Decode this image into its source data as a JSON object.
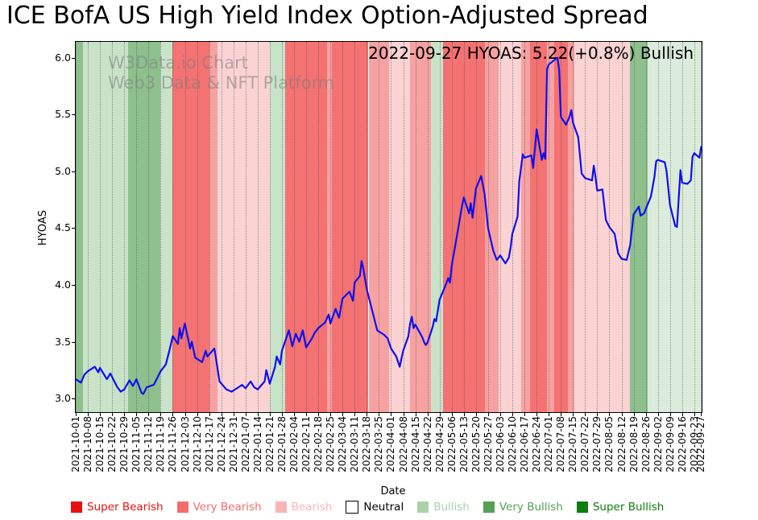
{
  "title": "ICE BofA US High Yield Index Option-Adjusted Spread",
  "watermark": {
    "line1": "W3Data.io Chart",
    "line2": "Web3 Data & NFT Platform"
  },
  "annotation": "2022-09-27 HYOAS: 5.22(+0.8%) Bullish",
  "legend": {
    "items": [
      {
        "label": "Super Bearish",
        "color": "#e81010"
      },
      {
        "label": "Very Bearish",
        "color": "#f56c6c"
      },
      {
        "label": "Bearish",
        "color": "#f8b4b4"
      },
      {
        "label": "Neutral",
        "color": "#ffffff",
        "text_color": "#000000",
        "border": true
      },
      {
        "label": "Bullish",
        "color": "#abd0ab"
      },
      {
        "label": "Very Bullish",
        "color": "#55a055"
      },
      {
        "label": "Super Bullish",
        "color": "#0e7d0e"
      }
    ]
  },
  "chart_data": {
    "type": "line",
    "title": "ICE BofA US High Yield Index Option-Adjusted Spread",
    "xlabel": "Date",
    "ylabel": "HYOAS",
    "ylim": [
      2.88,
      6.14
    ],
    "yticks": [
      3.0,
      3.5,
      4.0,
      4.5,
      5.0,
      5.5,
      6.0
    ],
    "grid": "weekly dotted vertical gridlines",
    "legend_position": "bottom",
    "line_color": "#0f0fee",
    "x_start": "2021-10-01",
    "x_end": "2022-09-27",
    "x_tick_labels": [
      "2021-10-01",
      "2021-10-08",
      "2021-10-15",
      "2021-10-22",
      "2021-10-29",
      "2021-11-05",
      "2021-11-12",
      "2021-11-19",
      "2021-11-26",
      "2021-12-03",
      "2021-12-10",
      "2021-12-17",
      "2021-12-24",
      "2021-12-31",
      "2022-01-07",
      "2022-01-14",
      "2022-01-21",
      "2022-01-28",
      "2022-02-04",
      "2022-02-11",
      "2022-02-18",
      "2022-02-25",
      "2022-03-04",
      "2022-03-11",
      "2022-03-18",
      "2022-03-25",
      "2022-04-01",
      "2022-04-08",
      "2022-04-15",
      "2022-04-22",
      "2022-04-29",
      "2022-05-06",
      "2022-05-13",
      "2022-05-20",
      "2022-05-27",
      "2022-06-03",
      "2022-06-10",
      "2022-06-17",
      "2022-06-24",
      "2022-07-01",
      "2022-07-08",
      "2022-07-15",
      "2022-07-22",
      "2022-07-29",
      "2022-08-05",
      "2022-08-12",
      "2022-08-19",
      "2022-08-26",
      "2022-09-02",
      "2022-09-09",
      "2022-09-16",
      "2022-09-23",
      "2022-09-27"
    ],
    "series_name": "HYOAS",
    "series": [
      [
        "2021-10-01",
        3.17
      ],
      [
        "2021-10-04",
        3.14
      ],
      [
        "2021-10-06",
        3.21
      ],
      [
        "2021-10-08",
        3.24
      ],
      [
        "2021-10-12",
        3.28
      ],
      [
        "2021-10-14",
        3.23
      ],
      [
        "2021-10-15",
        3.27
      ],
      [
        "2021-10-19",
        3.17
      ],
      [
        "2021-10-21",
        3.22
      ],
      [
        "2021-10-25",
        3.1
      ],
      [
        "2021-10-27",
        3.06
      ],
      [
        "2021-10-29",
        3.08
      ],
      [
        "2021-11-01",
        3.16
      ],
      [
        "2021-11-03",
        3.11
      ],
      [
        "2021-11-05",
        3.17
      ],
      [
        "2021-11-08",
        3.05
      ],
      [
        "2021-11-09",
        3.04
      ],
      [
        "2021-11-11",
        3.1
      ],
      [
        "2021-11-15",
        3.12
      ],
      [
        "2021-11-17",
        3.18
      ],
      [
        "2021-11-19",
        3.24
      ],
      [
        "2021-11-22",
        3.3
      ],
      [
        "2021-11-24",
        3.42
      ],
      [
        "2021-11-26",
        3.55
      ],
      [
        "2021-11-29",
        3.48
      ],
      [
        "2021-11-30",
        3.62
      ],
      [
        "2021-12-01",
        3.53
      ],
      [
        "2021-12-03",
        3.66
      ],
      [
        "2021-12-06",
        3.44
      ],
      [
        "2021-12-07",
        3.5
      ],
      [
        "2021-12-09",
        3.36
      ],
      [
        "2021-12-13",
        3.32
      ],
      [
        "2021-12-15",
        3.42
      ],
      [
        "2021-12-16",
        3.37
      ],
      [
        "2021-12-20",
        3.44
      ],
      [
        "2021-12-21",
        3.35
      ],
      [
        "2021-12-23",
        3.15
      ],
      [
        "2021-12-27",
        3.08
      ],
      [
        "2021-12-30",
        3.06
      ],
      [
        "2022-01-03",
        3.1
      ],
      [
        "2022-01-05",
        3.12
      ],
      [
        "2022-01-07",
        3.09
      ],
      [
        "2022-01-10",
        3.15
      ],
      [
        "2022-01-12",
        3.1
      ],
      [
        "2022-01-14",
        3.08
      ],
      [
        "2022-01-18",
        3.15
      ],
      [
        "2022-01-19",
        3.25
      ],
      [
        "2022-01-21",
        3.13
      ],
      [
        "2022-01-24",
        3.28
      ],
      [
        "2022-01-25",
        3.37
      ],
      [
        "2022-01-27",
        3.3
      ],
      [
        "2022-01-28",
        3.42
      ],
      [
        "2022-02-01",
        3.6
      ],
      [
        "2022-02-03",
        3.46
      ],
      [
        "2022-02-05",
        3.57
      ],
      [
        "2022-02-07",
        3.5
      ],
      [
        "2022-02-09",
        3.6
      ],
      [
        "2022-02-11",
        3.45
      ],
      [
        "2022-02-14",
        3.52
      ],
      [
        "2022-02-16",
        3.58
      ],
      [
        "2022-02-18",
        3.62
      ],
      [
        "2022-02-22",
        3.67
      ],
      [
        "2022-02-24",
        3.74
      ],
      [
        "2022-02-25",
        3.66
      ],
      [
        "2022-02-28",
        3.79
      ],
      [
        "2022-03-02",
        3.71
      ],
      [
        "2022-03-04",
        3.88
      ],
      [
        "2022-03-08",
        3.94
      ],
      [
        "2022-03-10",
        3.86
      ],
      [
        "2022-03-11",
        4.02
      ],
      [
        "2022-03-14",
        4.08
      ],
      [
        "2022-03-15",
        4.21
      ],
      [
        "2022-03-16",
        4.14
      ],
      [
        "2022-03-18",
        3.96
      ],
      [
        "2022-03-22",
        3.72
      ],
      [
        "2022-03-24",
        3.6
      ],
      [
        "2022-03-28",
        3.56
      ],
      [
        "2022-03-30",
        3.53
      ],
      [
        "2022-04-01",
        3.44
      ],
      [
        "2022-04-04",
        3.37
      ],
      [
        "2022-04-06",
        3.28
      ],
      [
        "2022-04-08",
        3.42
      ],
      [
        "2022-04-11",
        3.55
      ],
      [
        "2022-04-12",
        3.66
      ],
      [
        "2022-04-13",
        3.72
      ],
      [
        "2022-04-14",
        3.62
      ],
      [
        "2022-04-15",
        3.65
      ],
      [
        "2022-04-19",
        3.54
      ],
      [
        "2022-04-20",
        3.5
      ],
      [
        "2022-04-21",
        3.47
      ],
      [
        "2022-04-22",
        3.49
      ],
      [
        "2022-04-25",
        3.63
      ],
      [
        "2022-04-26",
        3.7
      ],
      [
        "2022-04-27",
        3.68
      ],
      [
        "2022-04-29",
        3.87
      ],
      [
        "2022-05-02",
        3.98
      ],
      [
        "2022-05-04",
        4.06
      ],
      [
        "2022-05-05",
        4.02
      ],
      [
        "2022-05-06",
        4.17
      ],
      [
        "2022-05-09",
        4.43
      ],
      [
        "2022-05-12",
        4.7
      ],
      [
        "2022-05-13",
        4.77
      ],
      [
        "2022-05-16",
        4.63
      ],
      [
        "2022-05-17",
        4.72
      ],
      [
        "2022-05-18",
        4.59
      ],
      [
        "2022-05-20",
        4.85
      ],
      [
        "2022-05-23",
        4.96
      ],
      [
        "2022-05-25",
        4.8
      ],
      [
        "2022-05-27",
        4.5
      ],
      [
        "2022-05-30",
        4.3
      ],
      [
        "2022-06-01",
        4.22
      ],
      [
        "2022-06-03",
        4.26
      ],
      [
        "2022-06-06",
        4.19
      ],
      [
        "2022-06-08",
        4.24
      ],
      [
        "2022-06-09",
        4.33
      ],
      [
        "2022-06-10",
        4.45
      ],
      [
        "2022-06-13",
        4.6
      ],
      [
        "2022-06-14",
        4.91
      ],
      [
        "2022-06-16",
        5.15
      ],
      [
        "2022-06-17",
        5.12
      ],
      [
        "2022-06-21",
        5.14
      ],
      [
        "2022-06-22",
        5.03
      ],
      [
        "2022-06-24",
        5.37
      ],
      [
        "2022-06-27",
        5.1
      ],
      [
        "2022-06-28",
        5.16
      ],
      [
        "2022-06-29",
        5.11
      ],
      [
        "2022-06-30",
        5.9
      ],
      [
        "2022-07-01",
        5.94
      ],
      [
        "2022-07-05",
        5.99
      ],
      [
        "2022-07-06",
        6.0
      ],
      [
        "2022-07-07",
        5.9
      ],
      [
        "2022-07-08",
        5.48
      ],
      [
        "2022-07-11",
        5.41
      ],
      [
        "2022-07-13",
        5.48
      ],
      [
        "2022-07-14",
        5.54
      ],
      [
        "2022-07-15",
        5.43
      ],
      [
        "2022-07-18",
        5.3
      ],
      [
        "2022-07-20",
        4.98
      ],
      [
        "2022-07-22",
        4.94
      ],
      [
        "2022-07-26",
        4.92
      ],
      [
        "2022-07-27",
        5.05
      ],
      [
        "2022-07-28",
        4.95
      ],
      [
        "2022-07-29",
        4.83
      ],
      [
        "2022-08-01",
        4.84
      ],
      [
        "2022-08-03",
        4.57
      ],
      [
        "2022-08-05",
        4.51
      ],
      [
        "2022-08-08",
        4.45
      ],
      [
        "2022-08-10",
        4.28
      ],
      [
        "2022-08-12",
        4.23
      ],
      [
        "2022-08-15",
        4.22
      ],
      [
        "2022-08-16",
        4.29
      ],
      [
        "2022-08-17",
        4.35
      ],
      [
        "2022-08-19",
        4.62
      ],
      [
        "2022-08-22",
        4.69
      ],
      [
        "2022-08-23",
        4.61
      ],
      [
        "2022-08-25",
        4.63
      ],
      [
        "2022-08-29",
        4.78
      ],
      [
        "2022-08-31",
        4.95
      ],
      [
        "2022-09-01",
        5.09
      ],
      [
        "2022-09-02",
        5.1
      ],
      [
        "2022-09-06",
        5.08
      ],
      [
        "2022-09-07",
        5.0
      ],
      [
        "2022-09-09",
        4.7
      ],
      [
        "2022-09-12",
        4.52
      ],
      [
        "2022-09-13",
        4.51
      ],
      [
        "2022-09-15",
        5.01
      ],
      [
        "2022-09-16",
        4.9
      ],
      [
        "2022-09-19",
        4.89
      ],
      [
        "2022-09-21",
        4.92
      ],
      [
        "2022-09-22",
        5.13
      ],
      [
        "2022-09-23",
        5.16
      ],
      [
        "2022-09-26",
        5.12
      ],
      [
        "2022-09-27",
        5.22
      ]
    ],
    "band_colors": {
      "super_bearish": "#e81010",
      "very_bearish": "#f47272",
      "bearish": "#f7a2a2",
      "bearish_light": "#fbd3d3",
      "neutral": "#ffffff",
      "bullish_light": "#dcecdc",
      "bullish": "#c9e3c9",
      "very_bullish": "#8dc08d",
      "super_bullish": "#0e7d0e"
    },
    "sentiment_bands": [
      {
        "from": "2021-10-01",
        "to": "2021-10-05",
        "level": "very_bullish"
      },
      {
        "from": "2021-10-05",
        "to": "2021-10-31",
        "level": "bullish"
      },
      {
        "from": "2021-10-31",
        "to": "2021-11-19",
        "level": "very_bullish"
      },
      {
        "from": "2021-11-19",
        "to": "2021-11-26",
        "level": "bullish"
      },
      {
        "from": "2021-11-26",
        "to": "2021-12-17",
        "level": "very_bearish"
      },
      {
        "from": "2021-12-17",
        "to": "2021-12-22",
        "level": "bearish"
      },
      {
        "from": "2021-12-22",
        "to": "2022-01-21",
        "level": "bearish_light"
      },
      {
        "from": "2022-01-21",
        "to": "2022-01-30",
        "level": "bullish"
      },
      {
        "from": "2022-01-30",
        "to": "2022-02-23",
        "level": "very_bearish"
      },
      {
        "from": "2022-02-23",
        "to": "2022-02-26",
        "level": "bearish"
      },
      {
        "from": "2022-02-26",
        "to": "2022-03-19",
        "level": "very_bearish"
      },
      {
        "from": "2022-03-19",
        "to": "2022-03-31",
        "level": "bearish"
      },
      {
        "from": "2022-03-31",
        "to": "2022-04-12",
        "level": "bearish_light"
      },
      {
        "from": "2022-04-12",
        "to": "2022-04-24",
        "level": "bearish"
      },
      {
        "from": "2022-04-24",
        "to": "2022-05-01",
        "level": "bullish"
      },
      {
        "from": "2022-05-01",
        "to": "2022-05-25",
        "level": "very_bearish"
      },
      {
        "from": "2022-05-25",
        "to": "2022-06-02",
        "level": "bearish"
      },
      {
        "from": "2022-06-02",
        "to": "2022-06-15",
        "level": "bearish_light"
      },
      {
        "from": "2022-06-15",
        "to": "2022-06-20",
        "level": "bearish"
      },
      {
        "from": "2022-06-20",
        "to": "2022-06-30",
        "level": "very_bearish"
      },
      {
        "from": "2022-06-30",
        "to": "2022-07-04",
        "level": "bearish"
      },
      {
        "from": "2022-07-04",
        "to": "2022-07-12",
        "level": "very_bearish"
      },
      {
        "from": "2022-07-12",
        "to": "2022-07-16",
        "level": "bearish"
      },
      {
        "from": "2022-07-16",
        "to": "2022-08-17",
        "level": "bearish_light"
      },
      {
        "from": "2022-08-17",
        "to": "2022-08-27",
        "level": "very_bullish"
      },
      {
        "from": "2022-08-27",
        "to": "2022-09-28",
        "level": "bullish_light"
      }
    ]
  }
}
